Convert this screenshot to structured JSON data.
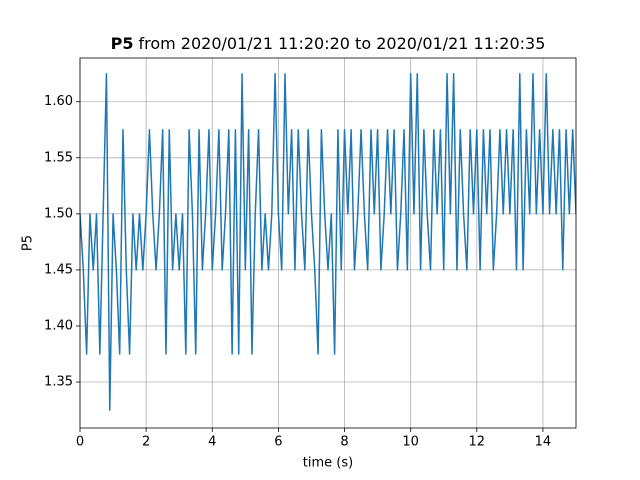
{
  "chart_data": {
    "type": "line",
    "title_bold": "P5",
    "title": "from 2020/01/21 11:20:20 to 2020/01/21 11:20:35",
    "x_label": "time (s)",
    "y_label": "P5",
    "xlim": [
      0,
      15
    ],
    "ylim": [
      1.309,
      1.639
    ],
    "xticks": [
      0,
      2,
      4,
      6,
      8,
      10,
      12,
      14
    ],
    "yticks": [
      1.35,
      {
        "value": 1.4,
        "label": "1.40"
      },
      1.45,
      {
        "value": 1.5,
        "label": "1.50"
      },
      1.55,
      {
        "value": 1.6,
        "label": "1.60"
      }
    ],
    "grid": true,
    "x": [
      0,
      0.1,
      0.2,
      0.3,
      0.4,
      0.5,
      0.6,
      0.7,
      0.8,
      0.9,
      1,
      1.1,
      1.2,
      1.3,
      1.4,
      1.5,
      1.6,
      1.7,
      1.8,
      1.9,
      2,
      2.1,
      2.2,
      2.3,
      2.4,
      2.5,
      2.6,
      2.7,
      2.8,
      2.9,
      3,
      3.1,
      3.2,
      3.3,
      3.4,
      3.5,
      3.6,
      3.7,
      3.8,
      3.9,
      4,
      4.1,
      4.2,
      4.3,
      4.4,
      4.5,
      4.6,
      4.7,
      4.8,
      4.9,
      5,
      5.1,
      5.2,
      5.3,
      5.4,
      5.5,
      5.6,
      5.7,
      5.8,
      5.9,
      6,
      6.1,
      6.2,
      6.3,
      6.4,
      6.5,
      6.6,
      6.7,
      6.8,
      6.9,
      7,
      7.1,
      7.2,
      7.3,
      7.4,
      7.5,
      7.6,
      7.7,
      7.8,
      7.9,
      8,
      8.1,
      8.2,
      8.3,
      8.4,
      8.5,
      8.6,
      8.7,
      8.8,
      8.9,
      9,
      9.1,
      9.2,
      9.3,
      9.4,
      9.5,
      9.6,
      9.7,
      9.8,
      9.9,
      10,
      10.1,
      10.2,
      10.3,
      10.4,
      10.5,
      10.6,
      10.7,
      10.8,
      10.9,
      11,
      11.1,
      11.2,
      11.3,
      11.4,
      11.5,
      11.6,
      11.7,
      11.8,
      11.9,
      12,
      12.1,
      12.2,
      12.3,
      12.4,
      12.5,
      12.6,
      12.7,
      12.8,
      12.9,
      13,
      13.1,
      13.2,
      13.3,
      13.4,
      13.5,
      13.6,
      13.7,
      13.8,
      13.9,
      14,
      14.1,
      14.2,
      14.3,
      14.4,
      14.5,
      14.6,
      14.7,
      14.8,
      14.9,
      15
    ],
    "series": [
      {
        "name": "P5",
        "color": "#1f77b4",
        "values": [
          1.5,
          1.45,
          1.375,
          1.5,
          1.45,
          1.5,
          1.375,
          1.5,
          1.625,
          1.325,
          1.5,
          1.45,
          1.375,
          1.575,
          1.45,
          1.375,
          1.5,
          1.45,
          1.5,
          1.45,
          1.5,
          1.575,
          1.5,
          1.45,
          1.5,
          1.575,
          1.375,
          1.575,
          1.45,
          1.5,
          1.45,
          1.5,
          1.375,
          1.575,
          1.5,
          1.375,
          1.575,
          1.45,
          1.5,
          1.575,
          1.45,
          1.5,
          1.575,
          1.45,
          1.5,
          1.575,
          1.375,
          1.575,
          1.375,
          1.625,
          1.45,
          1.575,
          1.375,
          1.5,
          1.575,
          1.45,
          1.5,
          1.45,
          1.5,
          1.625,
          1.5,
          1.45,
          1.625,
          1.5,
          1.575,
          1.45,
          1.575,
          1.5,
          1.45,
          1.575,
          1.5,
          1.45,
          1.375,
          1.575,
          1.5,
          1.45,
          1.5,
          1.375,
          1.575,
          1.45,
          1.575,
          1.5,
          1.575,
          1.45,
          1.5,
          1.575,
          1.5,
          1.45,
          1.575,
          1.5,
          1.575,
          1.45,
          1.5,
          1.575,
          1.5,
          1.575,
          1.45,
          1.5,
          1.575,
          1.45,
          1.625,
          1.5,
          1.625,
          1.45,
          1.575,
          1.5,
          1.45,
          1.575,
          1.5,
          1.575,
          1.45,
          1.625,
          1.5,
          1.625,
          1.45,
          1.575,
          1.5,
          1.45,
          1.575,
          1.5,
          1.575,
          1.45,
          1.575,
          1.5,
          1.575,
          1.45,
          1.5,
          1.575,
          1.5,
          1.575,
          1.5,
          1.575,
          1.45,
          1.625,
          1.45,
          1.575,
          1.5,
          1.625,
          1.5,
          1.575,
          1.5,
          1.625,
          1.5,
          1.575,
          1.5,
          1.575,
          1.45,
          1.575,
          1.5,
          1.575,
          1.5
        ]
      }
    ]
  }
}
